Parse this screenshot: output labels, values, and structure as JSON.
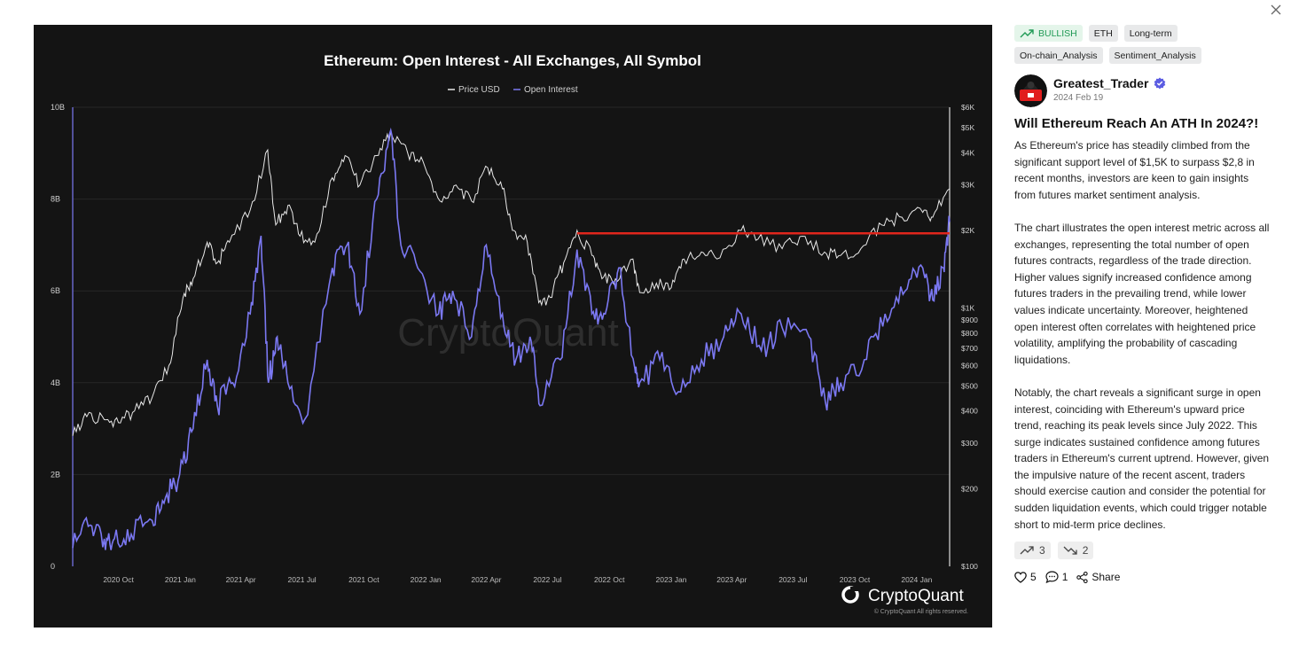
{
  "chart_data": {
    "type": "line",
    "title": "Ethereum: Open Interest - All Exchanges, All Symbol",
    "legend": [
      "Price USD",
      "Open Interest"
    ],
    "legend_position": "top-center",
    "grid": true,
    "x_ticks": [
      "2020 Oct",
      "2021 Jan",
      "2021 Apr",
      "2021 Jul",
      "2021 Oct",
      "2022 Jan",
      "2022 Apr",
      "2022 Jul",
      "2022 Oct",
      "2023 Jan",
      "2023 Apr",
      "2023 Jul",
      "2023 Oct",
      "2024 Jan"
    ],
    "y_left_ticks": [
      "0",
      "2B",
      "4B",
      "6B",
      "8B",
      "10B"
    ],
    "y_left_values": [
      0,
      2,
      4,
      6,
      8,
      10
    ],
    "y_left_range": [
      0,
      10
    ],
    "y_right_ticks": [
      "$100",
      "$200",
      "$300",
      "$400",
      "$500",
      "$600",
      "$700",
      "$800",
      "$900",
      "$1K",
      "$2K",
      "$3K",
      "$4K",
      "$5K",
      "$6K"
    ],
    "y_right_values": [
      100,
      200,
      300,
      400,
      500,
      600,
      700,
      800,
      900,
      1000,
      2000,
      3000,
      4000,
      5000,
      6000
    ],
    "y_right_scale": "log",
    "y_right_range": [
      100,
      6000
    ],
    "series": [
      {
        "name": "Price USD",
        "color": "#e8e8e8",
        "axis": "right",
        "x": [
          "2020-07-25",
          "2020-08-15",
          "2020-09-10",
          "2020-10-01",
          "2020-10-25",
          "2020-11-20",
          "2020-12-15",
          "2021-01-05",
          "2021-01-20",
          "2021-02-10",
          "2021-02-25",
          "2021-03-15",
          "2021-04-15",
          "2021-05-11",
          "2021-05-23",
          "2021-06-10",
          "2021-06-28",
          "2021-07-20",
          "2021-08-15",
          "2021-09-03",
          "2021-09-25",
          "2021-10-20",
          "2021-11-10",
          "2021-12-05",
          "2021-12-28",
          "2022-01-22",
          "2022-02-15",
          "2022-03-10",
          "2022-04-03",
          "2022-04-25",
          "2022-05-12",
          "2022-06-01",
          "2022-06-18",
          "2022-07-05",
          "2022-07-25",
          "2022-08-14",
          "2022-09-05",
          "2022-09-20",
          "2022-10-10",
          "2022-11-05",
          "2022-11-15",
          "2022-12-10",
          "2023-01-01",
          "2023-01-20",
          "2023-02-15",
          "2023-03-10",
          "2023-04-15",
          "2023-05-10",
          "2023-06-15",
          "2023-07-15",
          "2023-08-17",
          "2023-09-10",
          "2023-10-10",
          "2023-11-10",
          "2023-12-10",
          "2024-01-10",
          "2024-01-25",
          "2024-02-19"
        ],
        "y": [
          320,
          380,
          370,
          360,
          400,
          450,
          600,
          1100,
          1300,
          1800,
          1500,
          1800,
          2400,
          4100,
          2100,
          2500,
          1900,
          1800,
          3200,
          3900,
          3000,
          3900,
          4800,
          4000,
          3700,
          2600,
          3000,
          2600,
          3500,
          2900,
          2000,
          1800,
          1050,
          1100,
          1500,
          2000,
          1600,
          1300,
          1300,
          1550,
          1150,
          1250,
          1200,
          1550,
          1650,
          1550,
          2000,
          1850,
          1700,
          1900,
          1650,
          1600,
          1700,
          2100,
          2250,
          2350,
          2250,
          2900
        ]
      },
      {
        "name": "Open Interest",
        "color": "#7b78f2",
        "axis": "left",
        "x": [
          "2020-07-25",
          "2020-08-20",
          "2020-09-10",
          "2020-09-25",
          "2020-10-20",
          "2020-11-20",
          "2020-12-10",
          "2020-12-31",
          "2021-01-20",
          "2021-02-10",
          "2021-02-25",
          "2021-03-20",
          "2021-04-15",
          "2021-05-01",
          "2021-05-12",
          "2021-05-25",
          "2021-06-10",
          "2021-07-05",
          "2021-08-15",
          "2021-09-06",
          "2021-09-25",
          "2021-10-20",
          "2021-11-10",
          "2021-11-25",
          "2021-12-20",
          "2022-01-20",
          "2022-02-10",
          "2022-03-10",
          "2022-04-01",
          "2022-04-25",
          "2022-05-15",
          "2022-06-05",
          "2022-06-20",
          "2022-07-20",
          "2022-08-14",
          "2022-09-05",
          "2022-09-25",
          "2022-10-15",
          "2022-11-08",
          "2022-11-15",
          "2022-12-15",
          "2023-01-15",
          "2023-02-15",
          "2023-03-20",
          "2023-04-15",
          "2023-05-15",
          "2023-06-15",
          "2023-07-25",
          "2023-08-18",
          "2023-09-10",
          "2023-10-15",
          "2023-11-15",
          "2023-12-15",
          "2024-01-10",
          "2024-01-25",
          "2024-02-10",
          "2024-02-19"
        ],
        "y": [
          0.4,
          0.9,
          0.6,
          0.6,
          0.7,
          1.0,
          1.5,
          2.0,
          3.0,
          4.5,
          3.5,
          4.0,
          5.5,
          7.2,
          4.0,
          5.0,
          4.0,
          3.2,
          6.5,
          7.0,
          5.5,
          8.0,
          9.5,
          7.0,
          6.5,
          5.5,
          6.0,
          5.0,
          7.0,
          5.5,
          4.5,
          5.0,
          3.5,
          4.5,
          6.9,
          5.5,
          5.5,
          6.5,
          4.3,
          4.0,
          4.5,
          3.8,
          4.5,
          5.0,
          5.5,
          4.7,
          5.2,
          5.0,
          3.6,
          4.0,
          4.5,
          5.5,
          6.0,
          6.5,
          5.8,
          6.5,
          7.5
        ]
      }
    ],
    "reference_line": {
      "price": 1950,
      "from": "2022-08-14",
      "to": "2024-02-19",
      "color": "#e0261c"
    },
    "watermark": "CryptoQuant",
    "brand": "CryptoQuant",
    "copyright": "© CryptoQuant All rights reserved."
  },
  "sidebar": {
    "tags": [
      "BULLISH",
      "ETH",
      "Long-term",
      "On-chain_Analysis",
      "Sentiment_Analysis"
    ],
    "tag_accent": "#1f9a55",
    "author": {
      "name": "Greatest_Trader",
      "date": "2024 Feb 19",
      "verified_icon": "verified-badge-icon",
      "verified_color": "#5b5ce2"
    },
    "title": "Will Ethereum Reach An ATH In 2024?!",
    "paragraphs": [
      "As Ethereum's price has steadily climbed from the significant support level of $1,5K to surpass $2,8 in recent months, investors are keen to gain insights from futures market sentiment analysis.",
      "The chart illustrates the open interest metric across all exchanges, representing the total number of open futures contracts, regardless of the trade direction. Higher values signify increased confidence among futures traders in the prevailing trend, while lower values indicate uncertainty. Moreover, heightened open interest often correlates with heightened price volatility, amplifying the probability of cascading liquidations.",
      "Notably, the chart reveals a significant surge in open interest, coinciding with Ethereum's upward price trend, reaching its peak levels since July 2022. This surge indicates sustained confidence among futures traders in Ethereum's current uptrend. However, given the impulsive nature of the recent ascent, traders should exercise caution and consider the potential for sudden liquidation events, which could trigger notable short to mid-term price declines."
    ],
    "votes": {
      "up": "3",
      "down": "2"
    },
    "actions": {
      "likes": "5",
      "comments": "1",
      "share": "Share"
    }
  }
}
